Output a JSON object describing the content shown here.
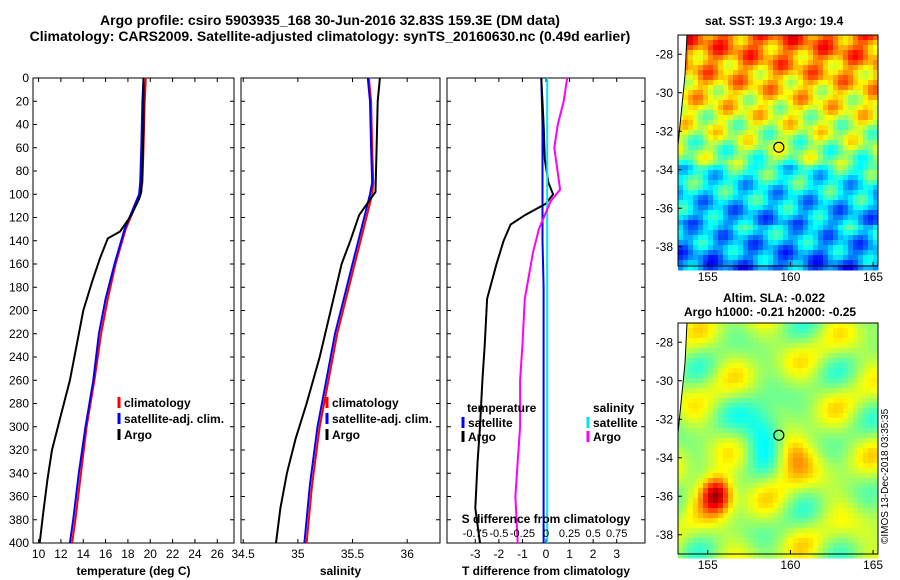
{
  "titles": {
    "line1": "Argo profile: csiro 5903935_168 30-Jun-2016 32.83S 159.3E (DM data)",
    "line2": "Climatology: CARS2009. Satellite-adjusted climatology: synTS_20160630.nc (0.49d earlier)"
  },
  "colors": {
    "climatology": "#ff0000",
    "satellite_adj": "#0000ff",
    "argo": "#000000",
    "satellite": "#00e5ee",
    "argo_s": "#ff00ff"
  },
  "chart_data": [
    {
      "type": "line",
      "id": "temperature",
      "xlabel": "temperature (deg C)",
      "ylabel": "",
      "xlim": [
        9.5,
        27.5
      ],
      "ylim": [
        0,
        400
      ],
      "y_reversed": true,
      "xticks": [
        10,
        12,
        14,
        16,
        18,
        20,
        22,
        24,
        26
      ],
      "yticks": [
        0,
        20,
        40,
        60,
        80,
        100,
        120,
        140,
        160,
        180,
        200,
        220,
        240,
        260,
        280,
        300,
        320,
        340,
        360,
        380,
        400
      ],
      "legend": [
        "climatology",
        "satellite-adj. clim.",
        "Argo"
      ],
      "series": [
        {
          "name": "climatology",
          "x": [
            19.6,
            19.5,
            19.4,
            19.3,
            19.1,
            17.8,
            16.9,
            16.2,
            15.6,
            15.0,
            14.3,
            13.8,
            13.3,
            13.0
          ],
          "y": [
            0,
            20,
            60,
            90,
            100,
            130,
            160,
            190,
            220,
            260,
            300,
            340,
            380,
            400
          ]
        },
        {
          "name": "satellite-adj. clim.",
          "x": [
            19.4,
            19.3,
            19.2,
            19.1,
            19.0,
            17.7,
            16.8,
            16.0,
            15.4,
            14.9,
            14.2,
            13.6,
            13.1,
            12.8
          ],
          "y": [
            0,
            20,
            60,
            90,
            100,
            130,
            160,
            190,
            220,
            260,
            300,
            340,
            380,
            400
          ]
        },
        {
          "name": "Argo",
          "x": [
            19.4,
            19.4,
            19.3,
            19.2,
            19.0,
            18.3,
            17.3,
            16.2,
            15.5,
            14.8,
            14.0,
            13.4,
            12.8,
            12.0,
            11.2,
            10.8,
            10.4,
            10.1
          ],
          "y": [
            0,
            40,
            80,
            98,
            104,
            118,
            132,
            138,
            155,
            175,
            200,
            230,
            260,
            290,
            320,
            345,
            375,
            400
          ]
        }
      ]
    },
    {
      "type": "line",
      "id": "salinity",
      "xlabel": "salinity",
      "ylabel": "",
      "xlim": [
        34.48,
        36.3
      ],
      "ylim": [
        0,
        400
      ],
      "y_reversed": true,
      "xticks": [
        34.5,
        35,
        35.5,
        36
      ],
      "xticklabels": [
        "34.5",
        "35",
        "35.5",
        "36"
      ],
      "legend": [
        "climatology",
        "satellite-adj. clim.",
        "Argo"
      ],
      "series": [
        {
          "name": "climatology",
          "x": [
            35.65,
            35.67,
            35.68,
            35.69,
            35.68,
            35.6,
            35.52,
            35.44,
            35.36,
            35.28,
            35.2,
            35.13,
            35.08
          ],
          "y": [
            0,
            20,
            60,
            90,
            100,
            130,
            160,
            190,
            220,
            260,
            300,
            350,
            400
          ]
        },
        {
          "name": "satellite-adj. clim.",
          "x": [
            35.64,
            35.66,
            35.67,
            35.68,
            35.66,
            35.58,
            35.5,
            35.42,
            35.34,
            35.26,
            35.18,
            35.11,
            35.06
          ],
          "y": [
            0,
            20,
            60,
            90,
            100,
            130,
            160,
            190,
            220,
            260,
            300,
            350,
            400
          ]
        },
        {
          "name": "Argo",
          "x": [
            35.75,
            35.73,
            35.72,
            35.71,
            35.65,
            35.56,
            35.48,
            35.4,
            35.3,
            35.2,
            35.08,
            34.98,
            34.9,
            34.84,
            34.8
          ],
          "y": [
            0,
            20,
            60,
            98,
            106,
            118,
            140,
            160,
            200,
            240,
            280,
            310,
            340,
            370,
            400
          ]
        }
      ]
    },
    {
      "type": "line",
      "id": "differences",
      "xlabel": "T difference from climatology",
      "xlabel_top": "S difference from climatology",
      "xlim": [
        -4.2,
        4.2
      ],
      "ylim": [
        0,
        400
      ],
      "y_reversed": true,
      "xticks": [
        -3,
        -2,
        -1,
        0,
        1,
        2,
        3
      ],
      "xticklabels": [
        "-3",
        "-2",
        "-1",
        "0",
        "1",
        "2",
        "3"
      ],
      "sticks": [
        -0.75,
        -0.5,
        -0.25,
        0,
        0.25,
        0.5,
        0.75
      ],
      "sticklabels": [
        "-0.75",
        "-0.5",
        "-0.25",
        "0",
        "0.25",
        "0.5",
        "0.75"
      ],
      "legend_headers": [
        "temperature",
        "salinity"
      ],
      "legend_temperature": [
        "satellite",
        "Argo"
      ],
      "legend_salinity": [
        "satellite",
        "Argo"
      ],
      "series": [
        {
          "name": "T satellite",
          "x": [
            -0.2,
            -0.15,
            -0.15,
            -0.15,
            -0.1,
            -0.1,
            -0.1,
            -0.1,
            -0.1,
            -0.1
          ],
          "y": [
            0,
            40,
            100,
            140,
            180,
            220,
            260,
            300,
            350,
            400
          ]
        },
        {
          "name": "T Argo",
          "x": [
            -0.2,
            -0.1,
            -0.05,
            0.1,
            0.3,
            0.0,
            -0.9,
            -1.5,
            -1.8,
            -2.1,
            -2.5,
            -2.6,
            -2.7,
            -2.8,
            -2.9,
            -3.0,
            -2.8
          ],
          "y": [
            0,
            40,
            70,
            90,
            100,
            108,
            118,
            126,
            140,
            160,
            190,
            230,
            260,
            300,
            330,
            370,
            400
          ]
        },
        {
          "name": "S satellite",
          "x": [
            0.05,
            0.05,
            0.05,
            0.05,
            0.05,
            0.05,
            0.05,
            0.05,
            0.05
          ],
          "y": [
            0,
            50,
            100,
            150,
            200,
            250,
            300,
            350,
            400
          ]
        },
        {
          "name": "S Argo",
          "x": [
            0.9,
            0.75,
            0.5,
            0.35,
            0.6,
            0.2,
            -0.3,
            -0.55,
            -0.9,
            -1.0,
            -1.1,
            -1.1,
            -1.2,
            -1.3,
            -1.2
          ],
          "y": [
            0,
            20,
            40,
            60,
            96,
            106,
            130,
            150,
            190,
            230,
            260,
            300,
            330,
            360,
            400
          ]
        }
      ]
    },
    {
      "type": "heatmap",
      "id": "sst_map",
      "title": "sat. SST: 19.3 Argo: 19.4",
      "xticks": [
        155,
        160,
        165
      ],
      "yticks": [
        -28,
        -30,
        -32,
        -34,
        -36,
        -38
      ],
      "xlim": [
        153.2,
        165.3
      ],
      "ylim": [
        -39.0,
        -27.0
      ],
      "marker": {
        "lon": 159.3,
        "lat": -32.83
      }
    },
    {
      "type": "heatmap",
      "id": "sla_map",
      "title": "Altim. SLA: -0.022",
      "subtitle": "Argo h1000: -0.21 h2000: -0.25",
      "xticks": [
        155,
        160,
        165
      ],
      "yticks": [
        -28,
        -30,
        -32,
        -34,
        -36,
        -38
      ],
      "xlim": [
        153.2,
        165.3
      ],
      "ylim": [
        -39.0,
        -27.0
      ],
      "marker": {
        "lon": 159.3,
        "lat": -32.83
      }
    }
  ],
  "stamp": "©IMOS 13-Dec-2018 03:35:35"
}
